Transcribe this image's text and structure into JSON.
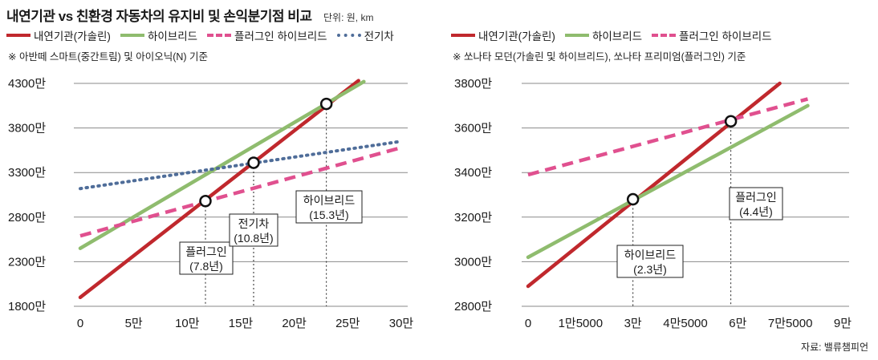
{
  "title": "내연기관 vs 친환경 자동차의 유지비 및 손익분기점 비교",
  "unit": "단위: 원, km",
  "source": "자료: 밸류챔피언",
  "colors": {
    "ice": "#c0282d",
    "hybrid": "#8fbc6e",
    "plugin": "#e0508f",
    "ev": "#4f6d99"
  },
  "left": {
    "legend": [
      "내연기관(가솔린)",
      "하이브리드",
      "플러그인 하이브리드",
      "전기차"
    ],
    "note": "※ 아반떼 스마트(중간트림) 및 아이오닉(N) 기준",
    "callouts": [
      {
        "line1": "플러그인",
        "line2": "(7.8년)"
      },
      {
        "line1": "전기차",
        "line2": "(10.8년)"
      },
      {
        "line1": "하이브리드",
        "line2": "(15.3년)"
      }
    ]
  },
  "right": {
    "legend": [
      "내연기관(가솔린)",
      "하이브리드",
      "플러그인 하이브리드"
    ],
    "note": "※ 쏘나타 모던(가솔린 및 하이브리드), 쏘나타 프리미엄(플러그인) 기준",
    "callouts": [
      {
        "line1": "하이브리드",
        "line2": "(2.3년)"
      },
      {
        "line1": "플러그인",
        "line2": "(4.4년)"
      }
    ]
  },
  "chart_data": [
    {
      "type": "line",
      "title": "",
      "xlabel": "",
      "ylabel": "",
      "x_ticks": [
        0,
        50000,
        100000,
        150000,
        200000,
        250000,
        300000
      ],
      "x_tick_labels": [
        "0",
        "5만",
        "10만",
        "15만",
        "20만",
        "25만",
        "30만"
      ],
      "xlim": [
        0,
        300000
      ],
      "y_ticks": [
        18000000,
        23000000,
        28000000,
        33000000,
        38000000,
        43000000
      ],
      "y_tick_labels": [
        "1800만",
        "2300만",
        "2800만",
        "3300만",
        "3800만",
        "4300만"
      ],
      "ylim": [
        18000000,
        43000000
      ],
      "series": [
        {
          "name": "내연기관(가솔린)",
          "color": "#c0282d",
          "style": "solid",
          "x": [
            0,
            260000
          ],
          "y": [
            19000000,
            43300000
          ]
        },
        {
          "name": "하이브리드",
          "color": "#8fbc6e",
          "style": "solid",
          "x": [
            0,
            265000
          ],
          "y": [
            24500000,
            43200000
          ]
        },
        {
          "name": "플러그인 하이브리드",
          "color": "#e0508f",
          "style": "dashed",
          "x": [
            0,
            300000
          ],
          "y": [
            25900000,
            35800000
          ]
        },
        {
          "name": "전기차",
          "color": "#4f6d99",
          "style": "dotted",
          "x": [
            0,
            300000
          ],
          "y": [
            31200000,
            36500000
          ]
        }
      ],
      "breakeven": [
        {
          "x": 117000,
          "y": 29800000
        },
        {
          "x": 162000,
          "y": 34100000
        },
        {
          "x": 230000,
          "y": 40700000
        }
      ]
    },
    {
      "type": "line",
      "title": "",
      "xlabel": "",
      "ylabel": "",
      "x_ticks": [
        0,
        15000,
        30000,
        45000,
        60000,
        75000,
        90000
      ],
      "x_tick_labels": [
        "0",
        "1만5000",
        "3만",
        "4만5000",
        "6만",
        "7만5000",
        "9만"
      ],
      "xlim": [
        0,
        90000
      ],
      "y_ticks": [
        28000000,
        30000000,
        32000000,
        34000000,
        36000000,
        38000000
      ],
      "y_tick_labels": [
        "2800만",
        "3000만",
        "3200만",
        "3400만",
        "3600만",
        "3800만"
      ],
      "ylim": [
        28000000,
        38000000
      ],
      "series": [
        {
          "name": "내연기관(가솔린)",
          "color": "#c0282d",
          "style": "solid",
          "x": [
            0,
            72000
          ],
          "y": [
            28900000,
            38000000
          ]
        },
        {
          "name": "하이브리드",
          "color": "#8fbc6e",
          "style": "solid",
          "x": [
            0,
            80000
          ],
          "y": [
            30200000,
            37000000
          ]
        },
        {
          "name": "플러그인 하이브리드",
          "color": "#e0508f",
          "style": "dashed",
          "x": [
            0,
            80000
          ],
          "y": [
            33900000,
            37300000
          ]
        }
      ],
      "breakeven": [
        {
          "x": 30000,
          "y": 32800000
        },
        {
          "x": 58000,
          "y": 36300000
        }
      ]
    }
  ]
}
